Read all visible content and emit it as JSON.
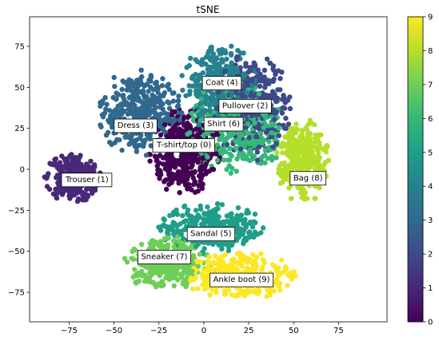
{
  "chart_data": {
    "type": "scatter",
    "title": "tSNE",
    "xlabel": "",
    "ylabel": "",
    "xlim": [
      -97,
      102
    ],
    "ylim": [
      -93,
      93
    ],
    "xticks": [
      -75,
      -50,
      -25,
      0,
      25,
      50,
      75
    ],
    "yticks": [
      -75,
      -50,
      -25,
      0,
      25,
      50,
      75
    ],
    "grid": false,
    "colormap": "viridis",
    "colorbar": {
      "range": [
        0,
        9
      ],
      "ticks": [
        0,
        1,
        2,
        3,
        4,
        5,
        6,
        7,
        8,
        9
      ]
    },
    "clusters": [
      {
        "label": "T-shirt/top (0)",
        "value": 0,
        "cx": -10,
        "cy": 10,
        "rx": 20,
        "ry": 26,
        "n": 420,
        "label_at": [
          -11,
          15
        ]
      },
      {
        "label": "Trouser (1)",
        "value": 1,
        "cx": -73,
        "cy": -5,
        "rx": 15,
        "ry": 15,
        "n": 300,
        "label_at": [
          -65,
          -6
        ]
      },
      {
        "label": "Pullover (2)",
        "value": 2,
        "cx": 26,
        "cy": 38,
        "rx": 22,
        "ry": 32,
        "n": 380,
        "label_at": [
          23,
          39
        ]
      },
      {
        "label": "Dress (3)",
        "value": 3,
        "cx": -36,
        "cy": 34,
        "rx": 23,
        "ry": 26,
        "n": 380,
        "label_at": [
          -38,
          27
        ]
      },
      {
        "label": "Coat (4)",
        "value": 4,
        "cx": 9,
        "cy": 50,
        "rx": 21,
        "ry": 27,
        "n": 360,
        "label_at": [
          10,
          53
        ]
      },
      {
        "label": "Sandal (5)",
        "value": 5,
        "cx": 4,
        "cy": -36,
        "rx": 28,
        "ry": 15,
        "n": 330,
        "label_at": [
          4,
          -39
        ]
      },
      {
        "label": "Shirt (6)",
        "value": 6,
        "cx": 18,
        "cy": 25,
        "rx": 27,
        "ry": 28,
        "n": 380,
        "label_at": [
          11,
          28
        ]
      },
      {
        "label": "Sneaker (7)",
        "value": 7,
        "cx": -20,
        "cy": -57,
        "rx": 25,
        "ry": 16,
        "n": 330,
        "label_at": [
          -22,
          -53
        ]
      },
      {
        "label": "Bag (8)",
        "value": 8,
        "cx": 55,
        "cy": 5,
        "rx": 14,
        "ry": 25,
        "n": 330,
        "label_at": [
          58,
          -5
        ]
      },
      {
        "label": "Ankle boot (9)",
        "value": 9,
        "cx": 20,
        "cy": -65,
        "rx": 30,
        "ry": 14,
        "n": 320,
        "label_at": [
          21,
          -67
        ]
      }
    ]
  }
}
